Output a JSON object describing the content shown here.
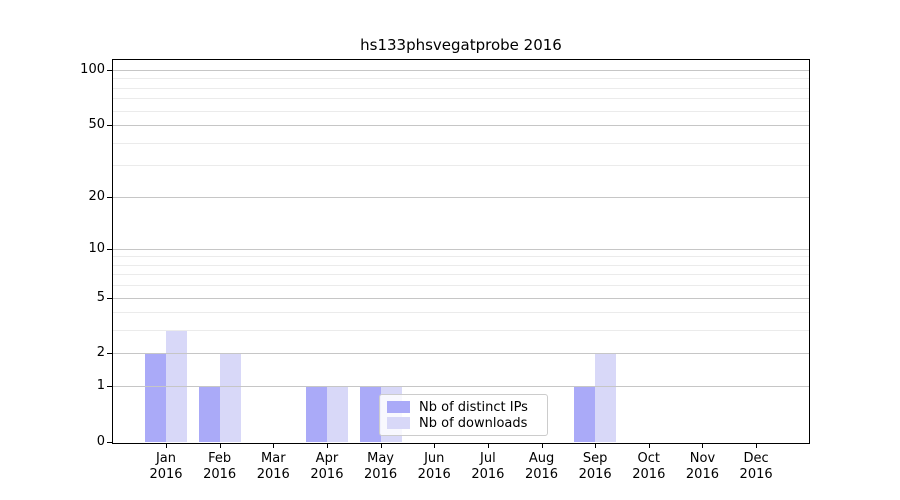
{
  "chart_data": {
    "type": "bar",
    "title": "hs133phsvegatprobe 2016",
    "categories": [
      "Jan",
      "Feb",
      "Mar",
      "Apr",
      "May",
      "Jun",
      "Jul",
      "Aug",
      "Sep",
      "Oct",
      "Nov",
      "Dec"
    ],
    "year_label": "2016",
    "series": [
      {
        "name": "Nb of distinct IPs",
        "color": "#aaaaf8",
        "values": [
          2,
          1,
          0,
          1,
          1,
          0,
          0,
          0,
          1,
          0,
          0,
          0
        ]
      },
      {
        "name": "Nb of downloads",
        "color": "#d8d8f8",
        "values": [
          3,
          2,
          0,
          1,
          1,
          0,
          0,
          0,
          2,
          0,
          0,
          0
        ]
      }
    ],
    "xlabel": "",
    "ylabel": "",
    "yscale": "log1p",
    "yticks": [
      0,
      1,
      2,
      5,
      10,
      20,
      50,
      100
    ],
    "minor_gridlines": [
      3,
      4,
      6,
      7,
      8,
      9,
      30,
      40,
      60,
      70,
      80,
      90
    ],
    "ylim": [
      0,
      113
    ],
    "grid": true,
    "legend_position": "lower center"
  },
  "colors": {
    "background": "#ffffff",
    "spine": "#000000",
    "major_grid": "#c6c6c6",
    "minor_grid": "#ebebeb",
    "legend_border": "#cccccc",
    "text": "#000000"
  }
}
